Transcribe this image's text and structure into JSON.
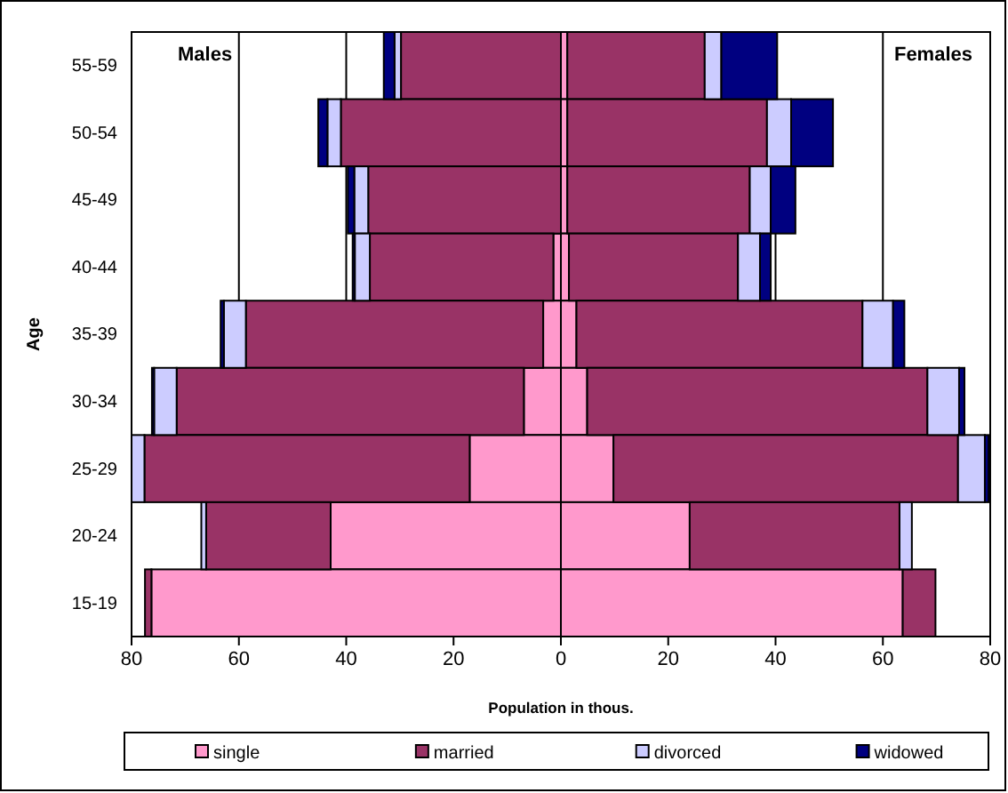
{
  "chart_data": {
    "type": "bar",
    "orientation": "horizontal",
    "stacked": true,
    "xlabel": "Population in thous.",
    "ylabel": "Age",
    "categories": [
      "55-59",
      "50-54",
      "45-49",
      "40-44",
      "35-39",
      "30-34",
      "25-29",
      "20-24",
      "15-19"
    ],
    "series": [
      {
        "color": "#ff99cc",
        "values": [
          null,
          null,
          null,
          -1.4,
          -3.3,
          -6.9,
          -17.0,
          -42.9,
          -76.3
        ]
      },
      {
        "color": "#993366",
        "values": [
          -29.8,
          -41.0,
          -35.9,
          -34.2,
          -55.4,
          -64.7,
          -60.6,
          -23.2,
          -1.2
        ]
      },
      {
        "color": "#ccccff",
        "values": [
          -1.2,
          -2.5,
          -2.6,
          -2.8,
          -4.1,
          -4.2,
          -2.4,
          -0.9,
          null
        ]
      },
      {
        "color": "#000080",
        "values": [
          -2.0,
          -1.7,
          -1.2,
          -0.4,
          -0.6,
          -0.4,
          null,
          null,
          null
        ]
      },
      {
        "name": "single",
        "color": "#ff99cc",
        "values": [
          1.2,
          1.2,
          1.2,
          1.5,
          2.9,
          4.9,
          9.8,
          24.0,
          63.7
        ]
      },
      {
        "name": "married",
        "color": "#993366",
        "values": [
          25.6,
          37.2,
          34.0,
          31.5,
          53.3,
          63.4,
          64.2,
          39.1,
          6.1
        ]
      },
      {
        "name": "divorced",
        "color": "#ccccff",
        "values": [
          3.1,
          4.5,
          3.9,
          4.1,
          5.7,
          5.9,
          5.0,
          2.3,
          null
        ]
      },
      {
        "name": "widowed",
        "color": "#000080",
        "values": [
          10.4,
          7.8,
          4.6,
          2.0,
          2.1,
          1.0,
          0.7,
          null,
          null
        ]
      }
    ],
    "xlim": [
      -80,
      80
    ],
    "xticks": [
      {
        "value": -80,
        "label": "80"
      },
      {
        "value": -60,
        "label": "60"
      },
      {
        "value": -40,
        "label": "40"
      },
      {
        "value": -20,
        "label": "20"
      },
      0,
      20,
      40,
      60,
      80
    ],
    "grid": "x",
    "legend": "bottom",
    "annotations": [
      "Males",
      "Females"
    ]
  }
}
